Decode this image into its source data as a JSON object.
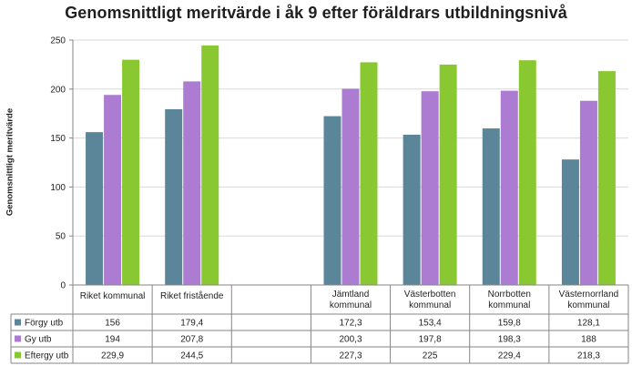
{
  "chart_data": {
    "type": "bar",
    "title": "Genomsnittligt meritvärde i åk 9 efter föräldrars utbildningsnivå",
    "ylabel": "Genomsnittligt meritvärde",
    "xlabel": "",
    "ylim": [
      0,
      250
    ],
    "yticks": [
      0,
      50,
      100,
      150,
      200,
      250
    ],
    "grid": true,
    "categories": [
      "Riket kommunal",
      "Riket fristående",
      "",
      "Jämtland kommunal",
      "Västerbotten kommunal",
      "Norrbotten kommunal",
      "Västernorrland kommunal"
    ],
    "series": [
      {
        "name": "Förgy utb",
        "color": "#5b8598",
        "values": [
          156,
          179.4,
          null,
          172.3,
          153.4,
          159.8,
          128.1
        ],
        "labels": [
          "156",
          "179,4",
          "",
          "172,3",
          "153,4",
          "159,8",
          "128,1"
        ]
      },
      {
        "name": "Gy utb",
        "color": "#ab7cd1",
        "values": [
          194,
          207.8,
          null,
          200.3,
          197.8,
          198.3,
          188
        ],
        "labels": [
          "194",
          "207,8",
          "",
          "200,3",
          "197,8",
          "198,3",
          "188"
        ]
      },
      {
        "name": "Eftergy utb",
        "color": "#8ac832",
        "values": [
          229.9,
          244.5,
          null,
          227.3,
          225,
          229.4,
          218.3
        ],
        "labels": [
          "229,9",
          "244,5",
          "",
          "227,3",
          "225",
          "229,4",
          "218,3"
        ]
      }
    ]
  }
}
